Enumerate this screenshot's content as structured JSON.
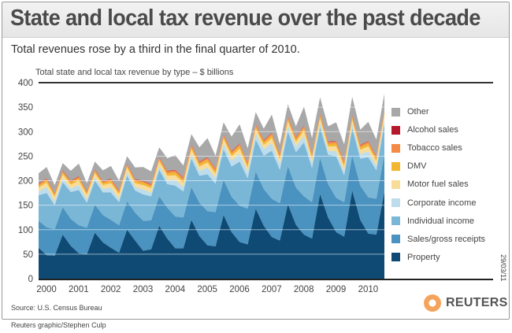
{
  "title": "State and local tax revenue over the past decade",
  "subtitle": "Total revenues rose by a third in the final quarter of 2010.",
  "source": "Source: U.S. Census Bureau",
  "credit": "Reuters graphic/Stephen Culp",
  "date_stamp": "29/03/11",
  "logo": "REUTERS",
  "chart_data": {
    "type": "area",
    "stacked": true,
    "title": "Total state and local tax revenue by type – $ billions",
    "ylim": [
      0,
      400
    ],
    "yticks": [
      0,
      50,
      100,
      150,
      200,
      250,
      300,
      350,
      400
    ],
    "xticks": [
      "2000",
      "2001",
      "2002",
      "2003",
      "2004",
      "2005",
      "2006",
      "2007",
      "2008",
      "2009",
      "2010"
    ],
    "x_frequency": "quarterly, 2000 Q1 – 2010 Q4",
    "grid": true,
    "legend_placement": "right",
    "series": [
      {
        "name": "Property",
        "color": "#0e4a74",
        "values": [
          63,
          48,
          47,
          90,
          67,
          52,
          50,
          94,
          74,
          63,
          53,
          100,
          78,
          57,
          60,
          108,
          82,
          62,
          62,
          120,
          87,
          68,
          66,
          130,
          95,
          75,
          70,
          143,
          108,
          85,
          78,
          152,
          110,
          90,
          82,
          173,
          125,
          95,
          86,
          180,
          120,
          92,
          90,
          178
        ]
      },
      {
        "name": "Sales/gross receipts",
        "color": "#4a92bf",
        "values": [
          55,
          57,
          54,
          56,
          55,
          57,
          54,
          57,
          56,
          57,
          56,
          58,
          57,
          61,
          59,
          60,
          63,
          65,
          63,
          67,
          68,
          70,
          70,
          72,
          72,
          74,
          73,
          76,
          75,
          78,
          76,
          78,
          76,
          78,
          74,
          74,
          68,
          70,
          70,
          72,
          70,
          74,
          73,
          76
        ]
      },
      {
        "name": "Individual income",
        "color": "#7ab6d6",
        "values": [
          52,
          70,
          49,
          51,
          55,
          72,
          51,
          49,
          46,
          56,
          47,
          52,
          45,
          54,
          49,
          54,
          48,
          63,
          53,
          58,
          55,
          75,
          58,
          62,
          62,
          90,
          62,
          65,
          68,
          98,
          68,
          70,
          72,
          110,
          70,
          62,
          60,
          85,
          55,
          55,
          55,
          82,
          58,
          62
        ]
      },
      {
        "name": "Corporate income",
        "color": "#bddcec",
        "values": [
          8,
          12,
          8,
          8,
          7,
          10,
          7,
          7,
          7,
          10,
          7,
          8,
          7,
          10,
          8,
          9,
          8,
          12,
          9,
          10,
          10,
          14,
          11,
          12,
          12,
          16,
          12,
          13,
          13,
          16,
          12,
          12,
          12,
          14,
          10,
          9,
          8,
          10,
          8,
          8,
          9,
          12,
          9,
          10
        ]
      },
      {
        "name": "Motor fuel sales",
        "color": "#f8dc98",
        "values": [
          8,
          9,
          9,
          8,
          8,
          9,
          9,
          8,
          8,
          9,
          9,
          9,
          8,
          9,
          9,
          9,
          9,
          9,
          9,
          9,
          9,
          10,
          9,
          9,
          9,
          10,
          10,
          9,
          9,
          10,
          10,
          9,
          9,
          10,
          9,
          9,
          9,
          10,
          10,
          9,
          9,
          10,
          10,
          9
        ]
      },
      {
        "name": "DMV",
        "color": "#f2b630",
        "values": [
          4,
          5,
          4,
          4,
          4,
          5,
          4,
          4,
          4,
          5,
          4,
          4,
          4,
          5,
          4,
          4,
          5,
          6,
          5,
          5,
          5,
          6,
          5,
          5,
          5,
          6,
          5,
          5,
          5,
          6,
          5,
          5,
          5,
          6,
          5,
          5,
          5,
          6,
          5,
          5,
          5,
          6,
          5,
          5
        ]
      },
      {
        "name": "Tobacco sales",
        "color": "#f38a45",
        "values": [
          3,
          3,
          3,
          3,
          3,
          3,
          3,
          3,
          3,
          3,
          3,
          3,
          3,
          3,
          3,
          3,
          4,
          4,
          4,
          4,
          4,
          4,
          4,
          4,
          4,
          4,
          4,
          4,
          4,
          4,
          4,
          4,
          4,
          4,
          4,
          4,
          4,
          4,
          4,
          4,
          4,
          4,
          4,
          4
        ]
      },
      {
        "name": "Alcohol sales",
        "color": "#b51a2c",
        "values": [
          1,
          1,
          1,
          1,
          1,
          1,
          1,
          1,
          1,
          1,
          1,
          1,
          1,
          1,
          1,
          1,
          1,
          1,
          1,
          1,
          1,
          1,
          1,
          1,
          1,
          1,
          1,
          1,
          1,
          1,
          1,
          1,
          1,
          1,
          1,
          1,
          1,
          1,
          1,
          1,
          1,
          1,
          1,
          1
        ]
      },
      {
        "name": "Other",
        "color": "#a8a8a8",
        "values": [
          21,
          23,
          16,
          15,
          20,
          26,
          16,
          16,
          22,
          26,
          20,
          15,
          24,
          28,
          26,
          20,
          26,
          30,
          25,
          21,
          29,
          39,
          27,
          24,
          30,
          39,
          29,
          24,
          23,
          37,
          20,
          25,
          22,
          38,
          32,
          33,
          31,
          38,
          35,
          37,
          31,
          39,
          34,
          33
        ]
      }
    ]
  }
}
